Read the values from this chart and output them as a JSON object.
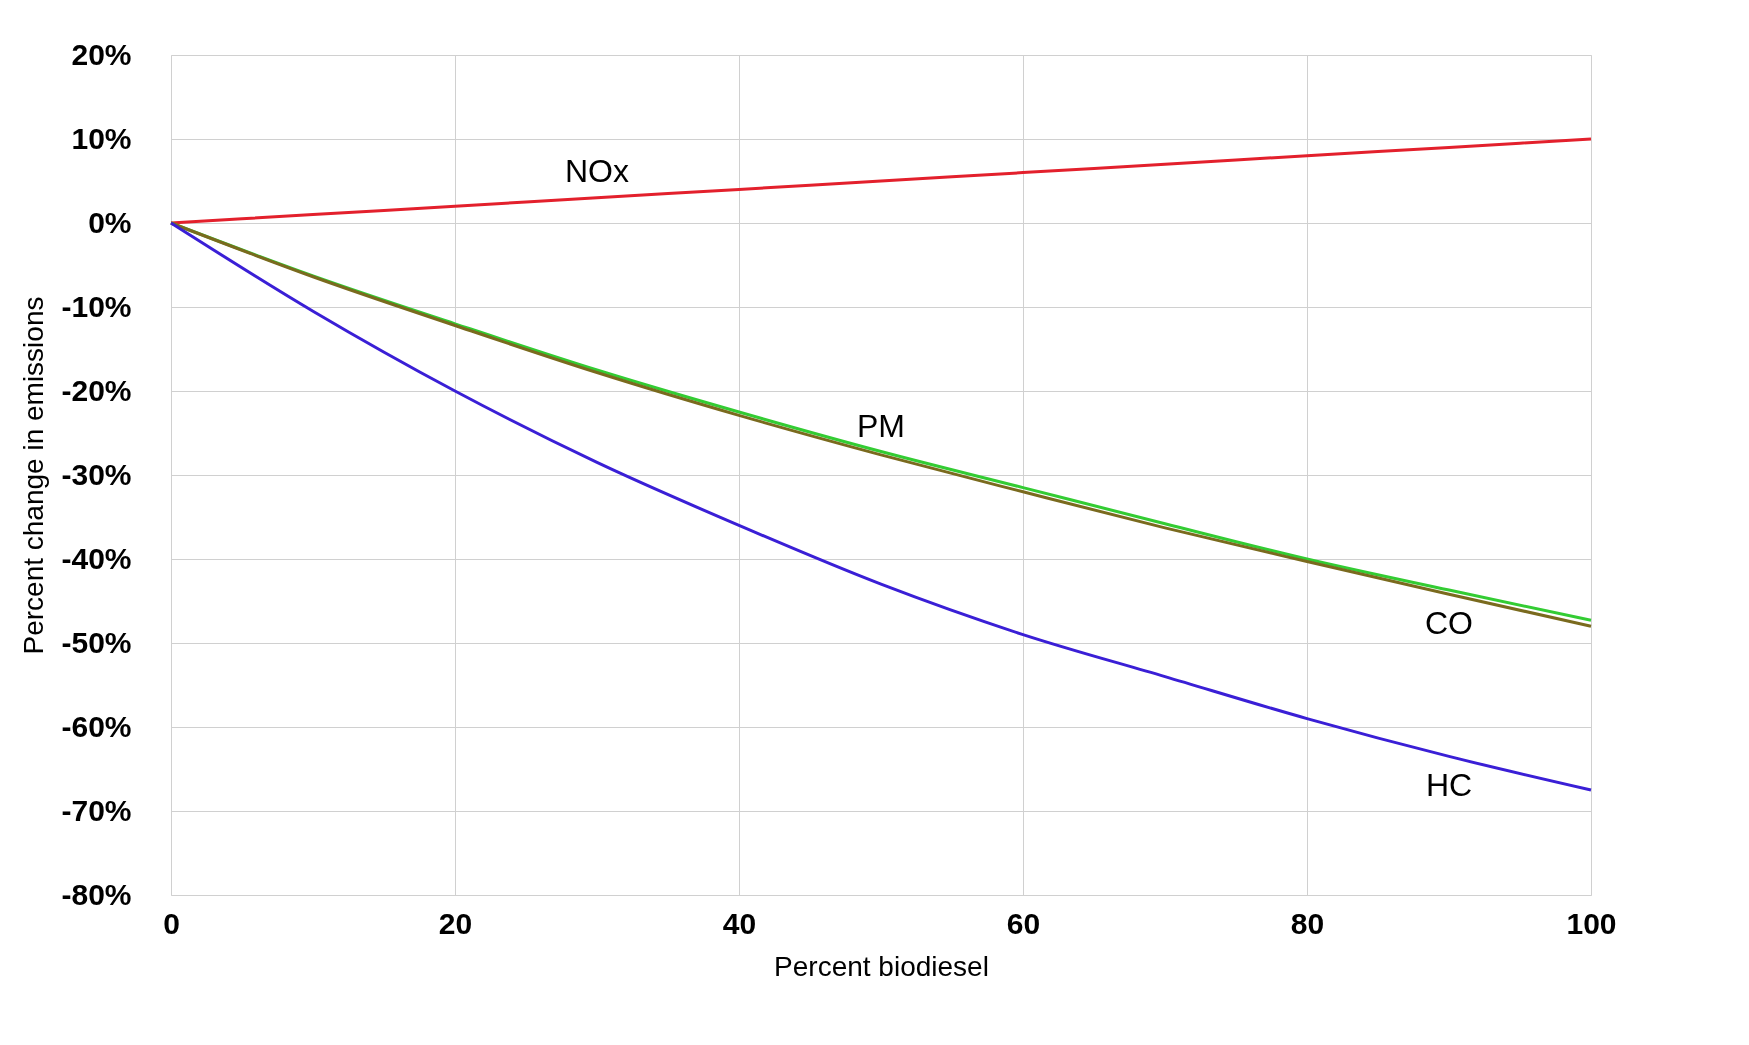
{
  "chart_data": {
    "type": "line",
    "xlabel": "Percent biodiesel",
    "ylabel": "Percent change in emissions",
    "x": [
      0,
      10,
      20,
      30,
      40,
      50,
      60,
      70,
      80,
      90,
      100
    ],
    "series": [
      {
        "name": "NOx",
        "color": "#e3202c",
        "values": [
          0,
          1,
          2,
          3,
          4,
          5,
          6,
          7,
          8,
          9,
          10
        ]
      },
      {
        "name": "PM",
        "color": "#33cc33",
        "values": [
          0,
          -6.3,
          -12,
          -17.5,
          -22.5,
          -27.2,
          -31.5,
          -35.8,
          -40,
          -43.7,
          -47.3
        ]
      },
      {
        "name": "CO",
        "color": "#7a6a1e",
        "values": [
          0,
          -6.4,
          -12.2,
          -17.8,
          -22.9,
          -27.6,
          -32,
          -36.3,
          -40.3,
          -44.2,
          -48
        ]
      },
      {
        "name": "HC",
        "color": "#3a1fd6",
        "values": [
          0,
          -10.5,
          -20,
          -28.5,
          -36,
          -43,
          -49,
          -54,
          -59,
          -63.5,
          -67.5
        ]
      }
    ],
    "xlim": [
      0,
      100
    ],
    "xticks": [
      0,
      20,
      40,
      60,
      80,
      100
    ],
    "ylim": [
      -80,
      20
    ],
    "yticks": [
      {
        "value": -80,
        "label": "-80%"
      },
      {
        "value": -70,
        "label": "-70%"
      },
      {
        "value": -60,
        "label": "-60%"
      },
      {
        "value": -50,
        "label": "-50%"
      },
      {
        "value": -40,
        "label": "-40%"
      },
      {
        "value": -30,
        "label": "-30%"
      },
      {
        "value": -20,
        "label": "-20%"
      },
      {
        "value": -10,
        "label": "-10%"
      },
      {
        "value": 0,
        "label": "0%"
      },
      {
        "value": 10,
        "label": "10%"
      },
      {
        "value": 20,
        "label": "20%"
      }
    ],
    "grid": true,
    "legend": false,
    "marker": "none",
    "line_style": "solid"
  }
}
